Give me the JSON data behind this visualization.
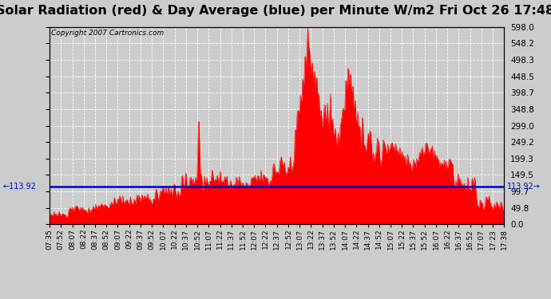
{
  "title": "Solar Radiation (red) & Day Average (blue) per Minute W/m2 Fri Oct 26 17:48",
  "copyright": "Copyright 2007 Cartronics.com",
  "average_value": 113.92,
  "y_max": 598.0,
  "y_min": 0.0,
  "y_ticks_right": [
    0.0,
    49.8,
    99.7,
    149.5,
    199.3,
    249.2,
    299.0,
    348.8,
    398.7,
    448.5,
    498.3,
    548.2,
    598.0
  ],
  "bg_color": "#cccccc",
  "red_color": "#ff0000",
  "blue_color": "#0000cc",
  "grid_color": "#ffffff",
  "title_fontsize": 11.5,
  "x_tick_labels": [
    "07:35",
    "07:52",
    "08:07",
    "08:22",
    "08:37",
    "08:52",
    "09:07",
    "09:22",
    "09:37",
    "09:52",
    "10:07",
    "10:22",
    "10:37",
    "10:52",
    "11:07",
    "11:22",
    "11:37",
    "11:52",
    "12:07",
    "12:22",
    "12:37",
    "12:52",
    "13:07",
    "13:22",
    "13:37",
    "13:52",
    "14:07",
    "14:22",
    "14:37",
    "14:52",
    "15:07",
    "15:22",
    "15:37",
    "15:52",
    "16:07",
    "16:22",
    "16:37",
    "16:52",
    "17:07",
    "17:23",
    "17:38"
  ]
}
